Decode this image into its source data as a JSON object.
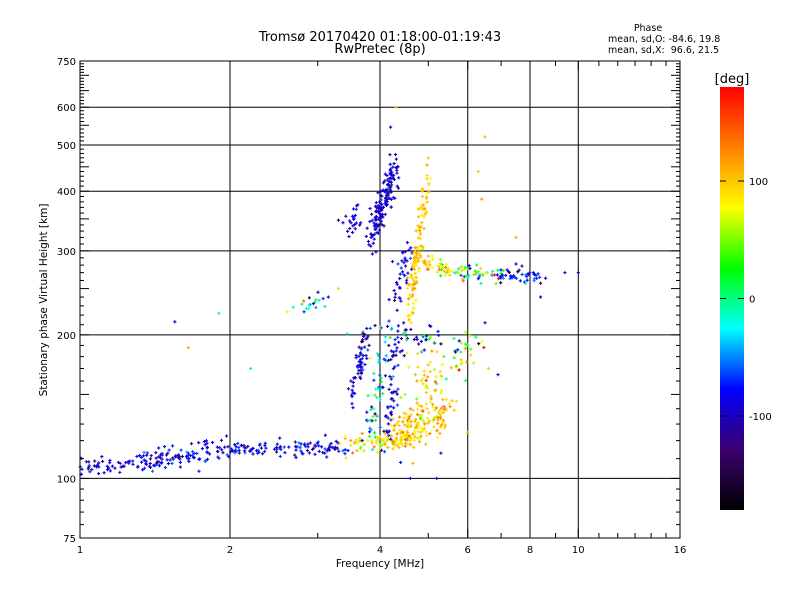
{
  "header": {
    "title_line1": "Tromsø 20170420 01:18:00-01:19:43",
    "title_line2": "RwPretec (8p)"
  },
  "phase_info": {
    "heading": "Phase",
    "line_o": "mean, sd,O: -84.6, 19.8",
    "line_x": "mean, sd,X:  96.6, 21.5"
  },
  "chart_data": {
    "type": "scatter",
    "xlabel": "Frequency [MHz]",
    "ylabel": "Stationary phase Virtual Height [km]",
    "x_scale": "log",
    "y_scale": "log",
    "xlim": [
      1,
      16
    ],
    "ylim": [
      75,
      750
    ],
    "x_ticks": [
      1,
      2,
      4,
      6,
      8,
      10,
      16
    ],
    "x_tick_labels": [
      "1",
      "2",
      "4",
      "6",
      "8",
      "10",
      "16"
    ],
    "y_ticks": [
      75,
      100,
      200,
      300,
      400,
      500,
      600,
      750
    ],
    "y_tick_labels": [
      "75",
      "100",
      "200",
      "300",
      "400",
      "500",
      "600",
      "750"
    ],
    "grid": true,
    "grid_x": [
      2,
      4,
      6,
      8,
      10
    ],
    "grid_y": [
      100,
      200,
      300,
      400,
      500,
      600
    ],
    "colorbar": {
      "unit": "[deg]",
      "range": [
        -180,
        180
      ],
      "ticks": [
        100,
        0,
        -100
      ],
      "tick_labels": [
        "100",
        "0",
        "-100"
      ],
      "colormap": [
        "#000000",
        "#3c0070",
        "#0000ff",
        "#00ffff",
        "#00ff00",
        "#ffff00",
        "#ff8000",
        "#ff0000"
      ]
    },
    "clusters": [
      {
        "from": [
          1.0,
          106
        ],
        "to": [
          1.3,
          107
        ],
        "spread": [
          0.02,
          0.02
        ],
        "n": 45,
        "phase": -95,
        "phase_sd": 15
      },
      {
        "from": [
          1.3,
          108
        ],
        "to": [
          2.0,
          115
        ],
        "spread": [
          0.02,
          0.03
        ],
        "n": 110,
        "phase": -90,
        "phase_sd": 18
      },
      {
        "from": [
          2.0,
          115
        ],
        "to": [
          3.4,
          116
        ],
        "spread": [
          0.02,
          0.02
        ],
        "n": 110,
        "phase": -85,
        "phase_sd": 20
      },
      {
        "from": [
          3.4,
          116
        ],
        "to": [
          4.6,
          123
        ],
        "spread": [
          0.02,
          0.025
        ],
        "n": 70,
        "phase": 95,
        "phase_sd": 20
      },
      {
        "from": [
          4.2,
          118
        ],
        "to": [
          5.4,
          132
        ],
        "spread": [
          0.02,
          0.03
        ],
        "n": 80,
        "phase": 100,
        "phase_sd": 18
      },
      {
        "from": [
          4.3,
          130
        ],
        "to": [
          5.6,
          140
        ],
        "spread": [
          0.02,
          0.02
        ],
        "n": 55,
        "phase": 105,
        "phase_sd": 18
      },
      {
        "from": [
          3.5,
          150
        ],
        "to": [
          3.8,
          200
        ],
        "spread": [
          0.006,
          0.05
        ],
        "n": 60,
        "phase": -100,
        "phase_sd": 20
      },
      {
        "from": [
          3.75,
          120
        ],
        "to": [
          4.1,
          180
        ],
        "spread": [
          0.02,
          0.06
        ],
        "n": 50,
        "phase": -30,
        "phase_sd": 60
      },
      {
        "from": [
          4.1,
          120
        ],
        "to": [
          4.4,
          200
        ],
        "spread": [
          0.015,
          0.07
        ],
        "n": 60,
        "phase": -90,
        "phase_sd": 25
      },
      {
        "from": [
          4.5,
          120
        ],
        "to": [
          5.2,
          180
        ],
        "spread": [
          0.03,
          0.07
        ],
        "n": 70,
        "phase": 90,
        "phase_sd": 25
      },
      {
        "from": [
          5.3,
          150
        ],
        "to": [
          6.3,
          200
        ],
        "spread": [
          0.02,
          0.05
        ],
        "n": 30,
        "phase": 80,
        "phase_sd": 40
      },
      {
        "from": [
          3.4,
          335
        ],
        "to": [
          3.7,
          365
        ],
        "spread": [
          0.015,
          0.03
        ],
        "n": 25,
        "phase": -95,
        "phase_sd": 15
      },
      {
        "from": [
          3.85,
          320
        ],
        "to": [
          4.3,
          450
        ],
        "spread": [
          0.015,
          0.04
        ],
        "n": 160,
        "phase": -95,
        "phase_sd": 15
      },
      {
        "from": [
          4.2,
          230
        ],
        "to": [
          4.6,
          300
        ],
        "spread": [
          0.01,
          0.05
        ],
        "n": 40,
        "phase": -90,
        "phase_sd": 20
      },
      {
        "from": [
          4.6,
          230
        ],
        "to": [
          5.0,
          420
        ],
        "spread": [
          0.01,
          0.06
        ],
        "n": 120,
        "phase": 100,
        "phase_sd": 15
      },
      {
        "from": [
          5.0,
          285
        ],
        "to": [
          5.6,
          270
        ],
        "spread": [
          0.02,
          0.02
        ],
        "n": 40,
        "phase": 80,
        "phase_sd": 25
      },
      {
        "from": [
          5.6,
          270
        ],
        "to": [
          7.2,
          265
        ],
        "spread": [
          0.02,
          0.02
        ],
        "n": 50,
        "phase": 30,
        "phase_sd": 70
      },
      {
        "from": [
          6.8,
          270
        ],
        "to": [
          8.5,
          265
        ],
        "spread": [
          0.02,
          0.02
        ],
        "n": 40,
        "phase": -90,
        "phase_sd": 30
      },
      {
        "from": [
          2.6,
          225
        ],
        "to": [
          3.1,
          238
        ],
        "spread": [
          0.02,
          0.02
        ],
        "n": 18,
        "phase": -20,
        "phase_sd": 70
      },
      {
        "from": [
          4.0,
          200
        ],
        "to": [
          6.0,
          190
        ],
        "spread": [
          0.08,
          0.05
        ],
        "n": 50,
        "phase": -50,
        "phase_sd": 80
      }
    ],
    "sparse_points": [
      {
        "x": 1.55,
        "y": 213,
        "phase": -95
      },
      {
        "x": 1.65,
        "y": 188,
        "phase": 110
      },
      {
        "x": 1.9,
        "y": 222,
        "phase": -10
      },
      {
        "x": 2.2,
        "y": 170,
        "phase": -30
      },
      {
        "x": 4.3,
        "y": 600,
        "phase": 110
      },
      {
        "x": 4.2,
        "y": 545,
        "phase": -100
      },
      {
        "x": 6.5,
        "y": 520,
        "phase": 110
      },
      {
        "x": 6.3,
        "y": 440,
        "phase": 100
      },
      {
        "x": 5.0,
        "y": 470,
        "phase": 100
      },
      {
        "x": 6.4,
        "y": 385,
        "phase": 120
      },
      {
        "x": 7.5,
        "y": 320,
        "phase": 110
      },
      {
        "x": 9.4,
        "y": 270,
        "phase": -90
      },
      {
        "x": 10.0,
        "y": 270,
        "phase": -95
      },
      {
        "x": 8.4,
        "y": 240,
        "phase": -100
      },
      {
        "x": 3.3,
        "y": 250,
        "phase": 60
      },
      {
        "x": 3.15,
        "y": 240,
        "phase": -80
      },
      {
        "x": 4.6,
        "y": 100,
        "phase": -90
      },
      {
        "x": 5.2,
        "y": 100,
        "phase": -90
      },
      {
        "x": 4.4,
        "y": 108,
        "phase": -80
      },
      {
        "x": 5.3,
        "y": 113,
        "phase": -85
      },
      {
        "x": 6.0,
        "y": 125,
        "phase": 110
      },
      {
        "x": 6.6,
        "y": 170,
        "phase": 100
      },
      {
        "x": 6.9,
        "y": 165,
        "phase": -80
      },
      {
        "x": 6.5,
        "y": 212,
        "phase": -90
      }
    ]
  }
}
